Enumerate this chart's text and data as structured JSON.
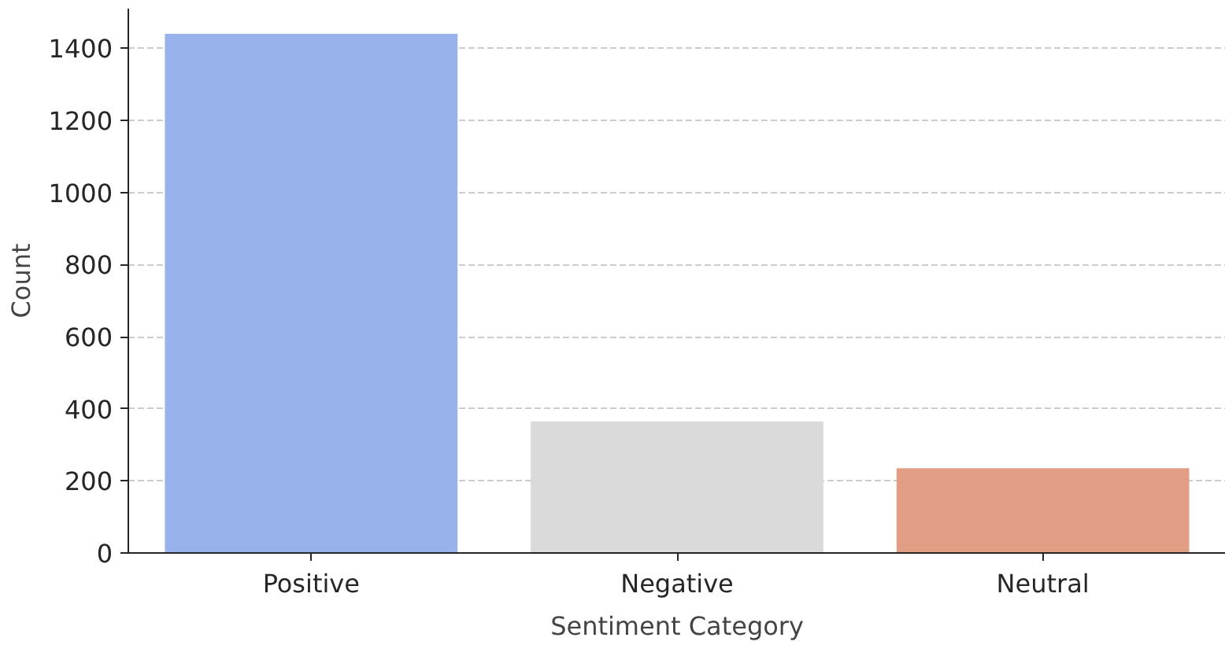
{
  "chart_data": {
    "type": "bar",
    "xlabel": "Sentiment Category",
    "ylabel": "Count",
    "categories": [
      "Positive",
      "Negative",
      "Neutral"
    ],
    "values": [
      1440,
      365,
      235
    ],
    "colors": [
      "#98b3ec",
      "#dadada",
      "#e29e85"
    ],
    "ylim": [
      0,
      1510
    ],
    "yticks": [
      0,
      200,
      400,
      600,
      800,
      1000,
      1200,
      1400
    ],
    "grid": "y"
  }
}
